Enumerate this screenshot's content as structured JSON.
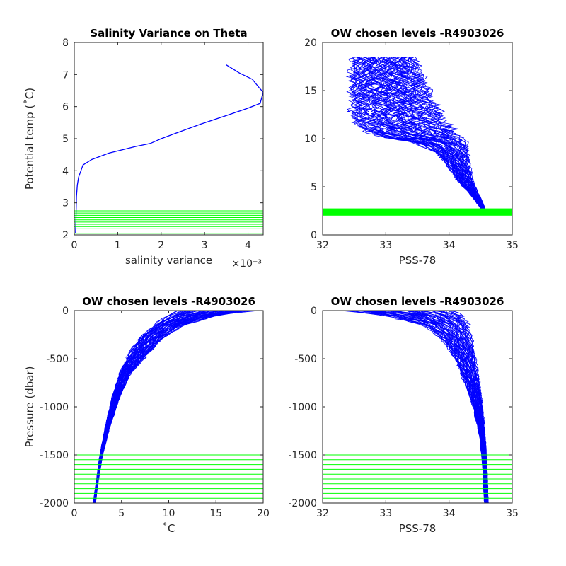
{
  "colors": {
    "profile": "#0000ff",
    "chosen_levels": "#00ff00",
    "axes": "#262626"
  },
  "chart_data": [
    {
      "id": "p1",
      "type": "line",
      "title": "Salinity Variance on Theta",
      "xlabel": "salinity variance",
      "xexponent": "×10⁻³",
      "ylabel": "Potential temp (˚C)",
      "xlim": [
        0,
        4.35
      ],
      "ylim": [
        2,
        8
      ],
      "xticks": [
        0,
        1,
        2,
        3,
        4
      ],
      "xticklabels": [
        "0",
        "1",
        "2",
        "3",
        "4"
      ],
      "yticks": [
        2,
        3,
        4,
        5,
        6,
        7,
        8
      ],
      "yticklabels": [
        "2",
        "3",
        "4",
        "5",
        "6",
        "7",
        "8"
      ],
      "series": [
        {
          "x": [
            3.5,
            3.8,
            4.1,
            4.25,
            4.35,
            4.28,
            4.0,
            3.5,
            2.9,
            2.4,
            2.0,
            1.75,
            1.4,
            0.8,
            0.4,
            0.2,
            0.1,
            0.07,
            0.05,
            0.04,
            0.03
          ],
          "y": [
            7.3,
            7.05,
            6.85,
            6.6,
            6.45,
            6.1,
            5.95,
            5.72,
            5.45,
            5.2,
            5.0,
            4.85,
            4.75,
            4.55,
            4.35,
            4.18,
            3.8,
            3.55,
            3.2,
            2.6,
            2.05
          ]
        }
      ],
      "hlines": [
        2.05,
        2.12,
        2.19,
        2.26,
        2.33,
        2.4,
        2.47,
        2.54,
        2.61,
        2.68,
        2.75
      ]
    },
    {
      "id": "p2",
      "type": "line",
      "title": "OW chosen levels -R4903026",
      "xlabel": "PSS-78",
      "ylabel": "",
      "xlim": [
        32,
        35
      ],
      "ylim": [
        0,
        20
      ],
      "xticks": [
        32,
        33,
        34,
        35
      ],
      "xticklabels": [
        "32",
        "33",
        "34",
        "35"
      ],
      "yticks": [
        0,
        5,
        10,
        15,
        20
      ],
      "yticklabels": [
        "0",
        "5",
        "10",
        "15",
        "20"
      ],
      "envelope": {
        "left_x": [
          32.5,
          32.45,
          32.45,
          32.55,
          32.75,
          33.1,
          33.5,
          33.8,
          34.0,
          34.15,
          34.3,
          34.42,
          34.52
        ],
        "right_x": [
          33.45,
          33.65,
          33.8,
          33.95,
          34.1,
          34.2,
          34.28,
          34.3,
          34.33,
          34.38,
          34.45,
          34.52,
          34.58
        ],
        "y": [
          18.5,
          15.0,
          13.0,
          11.5,
          10.5,
          10.0,
          9.5,
          8.5,
          7.0,
          5.5,
          4.5,
          3.5,
          2.6
        ]
      },
      "hband": [
        2.0,
        2.75
      ]
    },
    {
      "id": "p3",
      "type": "line",
      "title": "OW chosen levels -R4903026",
      "xlabel": "˚C",
      "ylabel": "Pressure (dbar)",
      "xlim": [
        0,
        20
      ],
      "ylim": [
        -2000,
        0
      ],
      "xticks": [
        0,
        5,
        10,
        15,
        20
      ],
      "xticklabels": [
        "0",
        "5",
        "10",
        "15",
        "20"
      ],
      "yticks": [
        -2000,
        -1500,
        -1000,
        -500,
        0
      ],
      "yticklabels": [
        "-2000",
        "-1500",
        "-1000",
        "-500",
        "0"
      ],
      "envelope": {
        "left_x": [
          11.0,
          10.0,
          8.5,
          7.0,
          5.8,
          4.8,
          4.0,
          3.3,
          2.7,
          2.3,
          2.0
        ],
        "right_x": [
          19.0,
          15.0,
          11.5,
          9.5,
          7.8,
          6.0,
          4.8,
          3.8,
          3.0,
          2.5,
          2.25
        ],
        "y": [
          0,
          -50,
          -150,
          -280,
          -450,
          -650,
          -900,
          -1200,
          -1500,
          -1800,
          -2000
        ]
      },
      "hlines": [
        -1500,
        -1550,
        -1600,
        -1650,
        -1700,
        -1750,
        -1800,
        -1850,
        -1900,
        -1950,
        -2000
      ]
    },
    {
      "id": "p4",
      "type": "line",
      "title": "OW chosen levels -R4903026",
      "xlabel": "PSS-78",
      "ylabel": "",
      "xlim": [
        32,
        35
      ],
      "ylim": [
        -2000,
        0
      ],
      "xticks": [
        32,
        33,
        34,
        35
      ],
      "xticklabels": [
        "32",
        "33",
        "34",
        "35"
      ],
      "yticks": [
        -2000,
        -1500,
        -1000,
        -500,
        0
      ],
      "yticklabels": [
        "-2000",
        "-1500",
        "-1000",
        "-500",
        "0"
      ],
      "envelope": {
        "left_x": [
          32.35,
          33.0,
          33.6,
          33.9,
          34.1,
          34.25,
          34.38,
          34.48,
          34.53,
          34.56
        ],
        "right_x": [
          34.05,
          34.2,
          34.28,
          34.35,
          34.42,
          34.48,
          34.53,
          34.57,
          34.6,
          34.62
        ],
        "y": [
          0,
          -50,
          -150,
          -300,
          -500,
          -750,
          -1000,
          -1300,
          -1600,
          -2000
        ]
      },
      "hlines": [
        -1500,
        -1550,
        -1600,
        -1650,
        -1700,
        -1750,
        -1800,
        -1850,
        -1900,
        -1950,
        -2000
      ]
    }
  ]
}
